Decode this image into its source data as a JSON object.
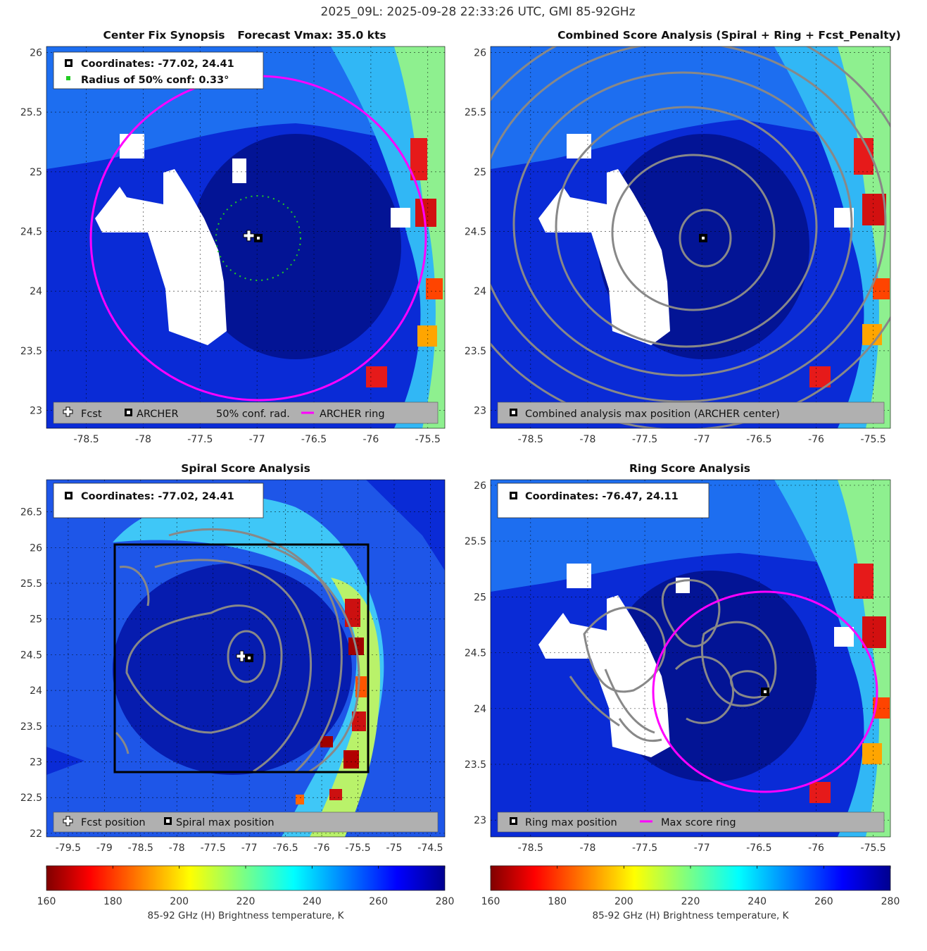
{
  "figure": {
    "title": "2025_09L: 2025-09-28 22:33:26 UTC, GMI 85-92GHz"
  },
  "colors": {
    "ring_magenta": "#ff00ff",
    "contour_gray": "#888888",
    "conf_green": "#22cc22",
    "legend_gray": "#b0b0b0",
    "land_white": "#ffffff",
    "colormap": "jet_reversed"
  },
  "panels": {
    "synopsis": {
      "title_left": "Center Fix Synopsis",
      "title_right": "Forecast Vmax: 35.0 kts",
      "info_coords": "Coordinates: -77.02, 24.41",
      "info_radius": "Radius of 50% conf: 0.33°",
      "legend": [
        "Fcst",
        "ARCHER",
        "50% conf. rad.",
        "ARCHER ring"
      ],
      "xticks": [
        "-78.5",
        "-78",
        "-77.5",
        "-77",
        "-76.5",
        "-76",
        "-75.5"
      ],
      "yticks": [
        "23",
        "23.5",
        "24",
        "24.5",
        "25",
        "25.5",
        "26"
      ]
    },
    "combined": {
      "title": "Combined Score Analysis (Spiral + Ring + Fcst_Penalty)",
      "legend": [
        "Combined analysis max position (ARCHER center)"
      ],
      "xticks": [
        "-78.5",
        "-78",
        "-77.5",
        "-77",
        "-76.5",
        "-76",
        "-75.5"
      ],
      "yticks": [
        "23",
        "23.5",
        "24",
        "24.5",
        "25",
        "25.5",
        "26"
      ]
    },
    "spiral": {
      "title": "Spiral Score Analysis",
      "info_coords": "Coordinates: -77.02, 24.41",
      "legend": [
        "Fcst position",
        "Spiral max position"
      ],
      "xticks": [
        "-79.5",
        "-79",
        "-78.5",
        "-78",
        "-77.5",
        "-77",
        "-76.5",
        "-76",
        "-75.5",
        "-75",
        "-74.5"
      ],
      "yticks": [
        "22",
        "22.5",
        "23",
        "23.5",
        "24",
        "24.5",
        "25",
        "25.5",
        "26",
        "26.5"
      ]
    },
    "ring": {
      "title": "Ring Score Analysis",
      "info_coords": "Coordinates: -76.47, 24.11",
      "legend": [
        "Ring max position",
        "Max score ring"
      ],
      "xticks": [
        "-78.5",
        "-78",
        "-77.5",
        "-77",
        "-76.5",
        "-76",
        "-75.5"
      ],
      "yticks": [
        "23",
        "23.5",
        "24",
        "24.5",
        "25",
        "25.5",
        "26"
      ]
    }
  },
  "colorbars": {
    "label": "85-92 GHz (H) Brightness temperature, K",
    "ticks": [
      "160",
      "180",
      "200",
      "220",
      "240",
      "260",
      "280"
    ]
  },
  "chart_data": [
    {
      "type": "heatmap",
      "title": "Center Fix Synopsis",
      "annotation": "Forecast Vmax: 35.0 kts",
      "xlim": [
        -78.85,
        -75.35
      ],
      "ylim": [
        22.85,
        26.05
      ],
      "color_range": [
        160,
        280
      ],
      "grid": true,
      "legend_placement": "bottom",
      "markers": {
        "fcst": [
          -77.13,
          24.41
        ],
        "archer": [
          -77.02,
          24.41
        ]
      },
      "conf_circle": {
        "center": [
          -77.02,
          24.41
        ],
        "radius_deg": 0.33
      },
      "archer_ring": {
        "center": [
          -77.02,
          24.41
        ],
        "radius_deg": 1.48
      }
    },
    {
      "type": "heatmap",
      "title": "Combined Score Analysis (Spiral + Ring + Fcst_Penalty)",
      "xlim": [
        -78.85,
        -75.35
      ],
      "ylim": [
        22.85,
        26.05
      ],
      "color_range": [
        160,
        280
      ],
      "grid": true,
      "legend_placement": "bottom",
      "markers": {
        "combined_max": [
          -77.02,
          24.41
        ]
      },
      "contours": "concentric score contours around combined max"
    },
    {
      "type": "heatmap",
      "title": "Spiral Score Analysis",
      "xlim": [
        -79.8,
        -74.3
      ],
      "ylim": [
        21.95,
        26.95
      ],
      "color_range": [
        160,
        280
      ],
      "grid": true,
      "legend_placement": "bottom",
      "markers": {
        "fcst": [
          -77.13,
          24.41
        ],
        "spiral_max": [
          -77.02,
          24.41
        ]
      },
      "search_box": {
        "lon": [
          -78.9,
          -75.6
        ],
        "lat": [
          22.8,
          26.0
        ]
      }
    },
    {
      "type": "heatmap",
      "title": "Ring Score Analysis",
      "xlim": [
        -78.85,
        -75.35
      ],
      "ylim": [
        22.85,
        26.05
      ],
      "color_range": [
        160,
        280
      ],
      "grid": true,
      "legend_placement": "bottom",
      "markers": {
        "ring_max": [
          -76.47,
          24.11
        ]
      },
      "max_score_ring": {
        "center": [
          -76.47,
          24.11
        ],
        "radius_deg": 0.97
      }
    }
  ]
}
